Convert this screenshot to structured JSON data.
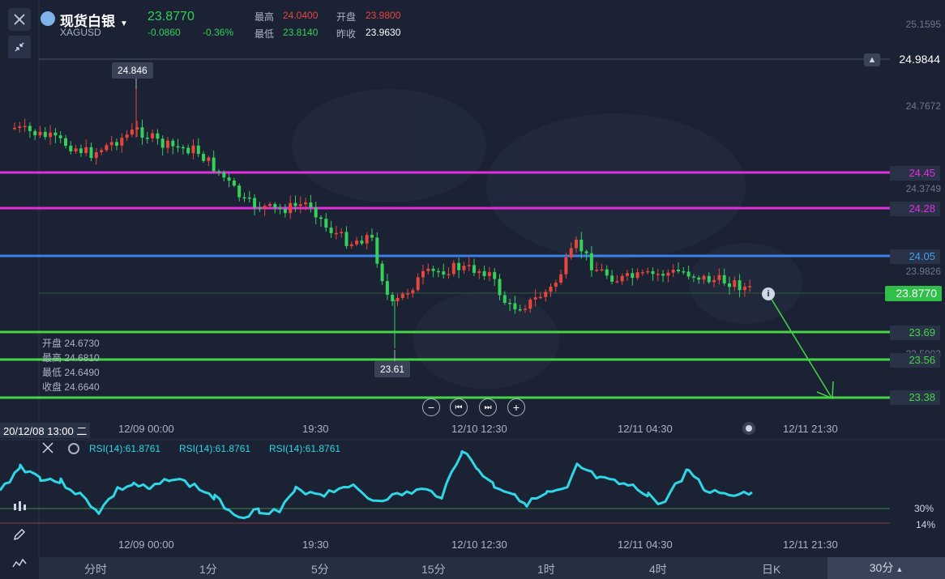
{
  "header": {
    "title": "现货白银",
    "symbol": "XAGUSD",
    "price": "23.8770",
    "change": "-0.0860",
    "change_pct": "-0.36%",
    "high_label": "最高",
    "high": "24.0400",
    "open_label": "开盘",
    "open": "23.9800",
    "low_label": "最低",
    "low": "23.8140",
    "prev_label": "昨收",
    "prev": "23.9630"
  },
  "right_axis": {
    "top": "25.1595",
    "alert_price": "24.9844",
    "v1": "24.7672",
    "v2": "24.3749",
    "v3": "23.9826",
    "v4": "23.5903",
    "current": "23.8770"
  },
  "lines": [
    {
      "name": "magenta-1",
      "label": "24.45",
      "color": "#e02ee0"
    },
    {
      "name": "magenta-2",
      "label": "24.28",
      "color": "#e02ee0"
    },
    {
      "name": "blue",
      "label": "24.05",
      "color": "#3f7fe8"
    },
    {
      "name": "green-1",
      "label": "23.69",
      "color": "#45d445"
    },
    {
      "name": "green-2",
      "label": "23.56",
      "color": "#45d445"
    },
    {
      "name": "green-3",
      "label": "23.38",
      "color": "#45d445"
    }
  ],
  "tooltips": {
    "high": "24.846",
    "low": "23.61"
  },
  "ohlc": {
    "open": "开盘 24.6730",
    "high": "最高 24.6810",
    "low": "最低 24.6490",
    "close": "收盘 24.6640"
  },
  "time_axis": {
    "cursor": "20/12/08 13:00 二",
    "t1": "12/09 00:00",
    "t2": "19:30",
    "t3": "12/10 12:30",
    "t4": "12/11 04:30",
    "t5": "12/11 21:30"
  },
  "rsi": {
    "label": "RSI(14):61.8761",
    "level_30": "30%",
    "level_14": "14%"
  },
  "timeframes": [
    "分时",
    "1分",
    "5分",
    "15分",
    "1时",
    "4时",
    "日K",
    "30分"
  ],
  "colors": {
    "up": "#e8453c",
    "down": "#35d05a",
    "rsi": "#2fd6e6",
    "bg": "#1b2234"
  }
}
